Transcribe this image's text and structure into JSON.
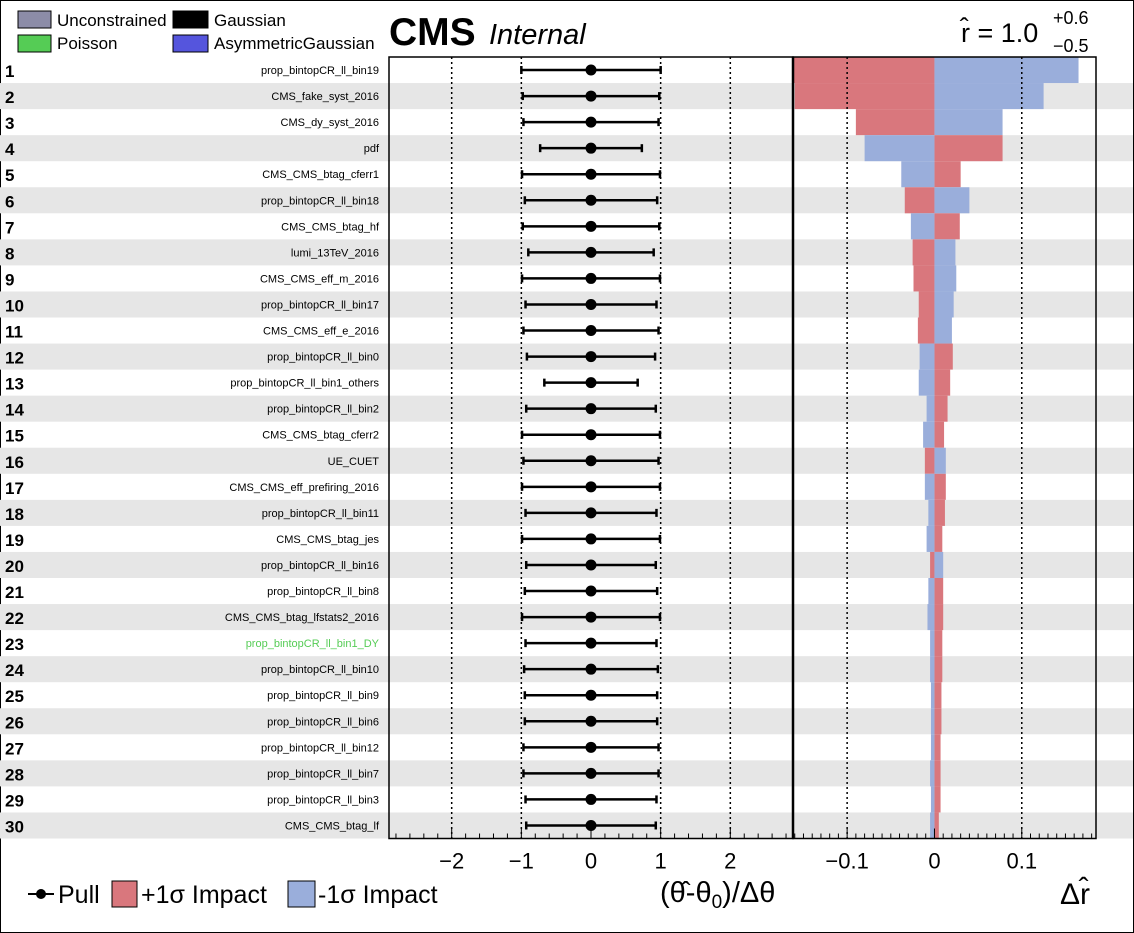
{
  "legend_top": [
    {
      "label": "Unconstrained",
      "color": "#8c8ca8"
    },
    {
      "label": "Gaussian",
      "color": "#000000"
    },
    {
      "label": "Poisson",
      "color": "#55cc55"
    },
    {
      "label": "AsymmetricGaussian",
      "color": "#5555dd"
    }
  ],
  "header": {
    "cms": "CMS",
    "internal": "Internal",
    "r_text": "r̂ = 1.0",
    "r_up": "+0.6",
    "r_down": "−0.5"
  },
  "footer": {
    "pull_label": "Pull",
    "plus_label": "+1σ Impact",
    "minus_label": "-1σ Impact",
    "pull_axis_label": "(θ̂-θ",
    "pull_axis_sub": "0",
    "pull_axis_tail": ")/Δθ",
    "impact_axis_label": "Δr̂"
  },
  "colors": {
    "plus": "#d9777d",
    "minus": "#9aaedb",
    "stripe": "#e6e6e6",
    "poisson": "#55cc55"
  },
  "chart_data": {
    "type": "impact",
    "pull_axis": {
      "range": [
        -2.9,
        2.9
      ],
      "ticks": [
        -2,
        -1,
        0,
        1,
        2
      ],
      "tick_labels": [
        "−2",
        "−1",
        "0",
        "1",
        "2"
      ]
    },
    "impact_axis": {
      "range": [
        -0.162,
        0.185
      ],
      "ticks": [
        -0.1,
        0,
        0.1
      ],
      "tick_labels": [
        "−0.1",
        "0",
        "0.1"
      ]
    },
    "rows": [
      {
        "rank": "1",
        "name": "prop_bintopCR_ll_bin19",
        "type": "Gaussian",
        "pull": 0.0,
        "lo": -1.0,
        "hi": 1.0,
        "plus": -0.162,
        "minus": 0.165
      },
      {
        "rank": "2",
        "name": "CMS_fake_syst_2016",
        "type": "Gaussian",
        "pull": 0.0,
        "lo": -0.98,
        "hi": 0.98,
        "plus": -0.16,
        "minus": 0.125
      },
      {
        "rank": "3",
        "name": "CMS_dy_syst_2016",
        "type": "Gaussian",
        "pull": 0.0,
        "lo": -0.97,
        "hi": 0.97,
        "plus": -0.09,
        "minus": 0.078
      },
      {
        "rank": "4",
        "name": "pdf",
        "type": "Gaussian",
        "pull": 0.0,
        "lo": -0.73,
        "hi": 0.73,
        "plus": 0.078,
        "minus": -0.08
      },
      {
        "rank": "5",
        "name": "CMS_CMS_btag_cferr1",
        "type": "Gaussian",
        "pull": 0.0,
        "lo": -0.99,
        "hi": 0.99,
        "plus": 0.03,
        "minus": -0.038
      },
      {
        "rank": "6",
        "name": "prop_bintopCR_ll_bin18",
        "type": "Gaussian",
        "pull": 0.0,
        "lo": -0.95,
        "hi": 0.95,
        "plus": -0.034,
        "minus": 0.04
      },
      {
        "rank": "7",
        "name": "CMS_CMS_btag_hf",
        "type": "Gaussian",
        "pull": 0.0,
        "lo": -0.98,
        "hi": 0.98,
        "plus": 0.029,
        "minus": -0.027
      },
      {
        "rank": "8",
        "name": "lumi_13TeV_2016",
        "type": "Gaussian",
        "pull": 0.0,
        "lo": -0.9,
        "hi": 0.9,
        "plus": -0.025,
        "minus": 0.024
      },
      {
        "rank": "9",
        "name": "CMS_CMS_eff_m_2016",
        "type": "Gaussian",
        "pull": 0.0,
        "lo": -0.99,
        "hi": 0.99,
        "plus": -0.024,
        "minus": 0.025
      },
      {
        "rank": "10",
        "name": "prop_bintopCR_ll_bin17",
        "type": "Gaussian",
        "pull": 0.0,
        "lo": -0.94,
        "hi": 0.94,
        "plus": -0.018,
        "minus": 0.022
      },
      {
        "rank": "11",
        "name": "CMS_CMS_eff_e_2016",
        "type": "Gaussian",
        "pull": 0.0,
        "lo": -0.97,
        "hi": 0.97,
        "plus": -0.019,
        "minus": 0.02
      },
      {
        "rank": "12",
        "name": "prop_bintopCR_ll_bin0",
        "type": "Gaussian",
        "pull": 0.0,
        "lo": -0.92,
        "hi": 0.92,
        "plus": 0.021,
        "minus": -0.017
      },
      {
        "rank": "13",
        "name": "prop_bintopCR_ll_bin1_others",
        "type": "Gaussian",
        "pull": 0.0,
        "lo": -0.67,
        "hi": 0.67,
        "plus": 0.018,
        "minus": -0.018
      },
      {
        "rank": "14",
        "name": "prop_bintopCR_ll_bin2",
        "type": "Gaussian",
        "pull": 0.0,
        "lo": -0.93,
        "hi": 0.93,
        "plus": 0.015,
        "minus": -0.009
      },
      {
        "rank": "15",
        "name": "CMS_CMS_btag_cferr2",
        "type": "Gaussian",
        "pull": 0.0,
        "lo": -0.99,
        "hi": 0.99,
        "plus": 0.011,
        "minus": -0.013
      },
      {
        "rank": "16",
        "name": "UE_CUET",
        "type": "Gaussian",
        "pull": 0.0,
        "lo": -0.97,
        "hi": 0.97,
        "plus": -0.011,
        "minus": 0.013
      },
      {
        "rank": "17",
        "name": "CMS_CMS_eff_prefiring_2016",
        "type": "Gaussian",
        "pull": 0.0,
        "lo": -0.99,
        "hi": 0.99,
        "plus": 0.013,
        "minus": -0.011
      },
      {
        "rank": "18",
        "name": "prop_bintopCR_ll_bin11",
        "type": "Gaussian",
        "pull": 0.0,
        "lo": -0.94,
        "hi": 0.94,
        "plus": 0.012,
        "minus": -0.007
      },
      {
        "rank": "19",
        "name": "CMS_CMS_btag_jes",
        "type": "Gaussian",
        "pull": 0.0,
        "lo": -0.99,
        "hi": 0.99,
        "plus": 0.009,
        "minus": -0.009
      },
      {
        "rank": "20",
        "name": "prop_bintopCR_ll_bin16",
        "type": "Gaussian",
        "pull": 0.0,
        "lo": -0.93,
        "hi": 0.93,
        "plus": -0.005,
        "minus": 0.01
      },
      {
        "rank": "21",
        "name": "prop_bintopCR_ll_bin8",
        "type": "Gaussian",
        "pull": 0.0,
        "lo": -0.95,
        "hi": 0.95,
        "plus": 0.01,
        "minus": -0.007
      },
      {
        "rank": "22",
        "name": "CMS_CMS_btag_lfstats2_2016",
        "type": "Gaussian",
        "pull": 0.0,
        "lo": -0.99,
        "hi": 0.99,
        "plus": 0.01,
        "minus": -0.008
      },
      {
        "rank": "23",
        "name": "prop_bintopCR_ll_bin1_DY",
        "type": "Poisson",
        "pull": 0.0,
        "lo": -0.94,
        "hi": 0.94,
        "plus": 0.009,
        "minus": -0.005
      },
      {
        "rank": "24",
        "name": "prop_bintopCR_ll_bin10",
        "type": "Gaussian",
        "pull": 0.0,
        "lo": -0.96,
        "hi": 0.96,
        "plus": 0.009,
        "minus": -0.005
      },
      {
        "rank": "25",
        "name": "prop_bintopCR_ll_bin9",
        "type": "Gaussian",
        "pull": 0.0,
        "lo": -0.95,
        "hi": 0.95,
        "plus": 0.008,
        "minus": -0.004
      },
      {
        "rank": "26",
        "name": "prop_bintopCR_ll_bin6",
        "type": "Gaussian",
        "pull": 0.0,
        "lo": -0.95,
        "hi": 0.95,
        "plus": 0.008,
        "minus": -0.004
      },
      {
        "rank": "27",
        "name": "prop_bintopCR_ll_bin12",
        "type": "Gaussian",
        "pull": 0.0,
        "lo": -0.97,
        "hi": 0.97,
        "plus": 0.007,
        "minus": -0.004
      },
      {
        "rank": "28",
        "name": "prop_bintopCR_ll_bin7",
        "type": "Gaussian",
        "pull": 0.0,
        "lo": -0.97,
        "hi": 0.97,
        "plus": 0.007,
        "minus": -0.005
      },
      {
        "rank": "29",
        "name": "prop_bintopCR_ll_bin3",
        "type": "Gaussian",
        "pull": 0.0,
        "lo": -0.94,
        "hi": 0.94,
        "plus": 0.007,
        "minus": -0.004
      },
      {
        "rank": "30",
        "name": "CMS_CMS_btag_lf",
        "type": "Gaussian",
        "pull": 0.0,
        "lo": -0.93,
        "hi": 0.93,
        "plus": 0.005,
        "minus": -0.005
      }
    ]
  }
}
